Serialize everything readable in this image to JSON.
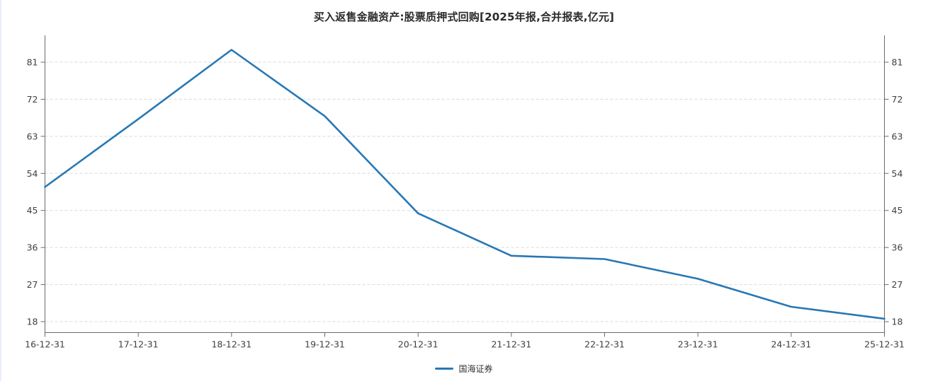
{
  "page": {
    "title": "买入返售金融资产:股票质押式回购[2025年报,合并报表,亿元]"
  },
  "chart_data": {
    "type": "line",
    "title": "买入返售金融资产:股票质押式回购[2025年报,合并报表,亿元]",
    "categories": [
      "16-12-31",
      "17-12-31",
      "18-12-31",
      "19-12-31",
      "20-12-31",
      "21-12-31",
      "22-12-31",
      "23-12-31",
      "24-12-31",
      "25-12-31"
    ],
    "series": [
      {
        "name": "国海证券",
        "color": "#2878b5",
        "values": [
          50.7,
          67.2,
          84.0,
          67.9,
          44.3,
          34.0,
          33.2,
          28.4,
          21.6,
          18.7
        ]
      }
    ],
    "xlabel": "",
    "ylabel": "",
    "yticks": [
      18,
      27,
      36,
      45,
      54,
      63,
      72,
      81
    ],
    "ylim": [
      15.4,
      87.5
    ],
    "grid": "horizontal-dashed",
    "legend_position": "bottom-center",
    "colors": {
      "grid": "#d9d9d9",
      "axis": "#6b6b6b",
      "tick_label": "#404040",
      "title": "#2b2b2b",
      "background": "#ffffff"
    }
  },
  "legend": {
    "items": [
      {
        "label": "国海证券",
        "color": "#2878b5"
      }
    ]
  }
}
